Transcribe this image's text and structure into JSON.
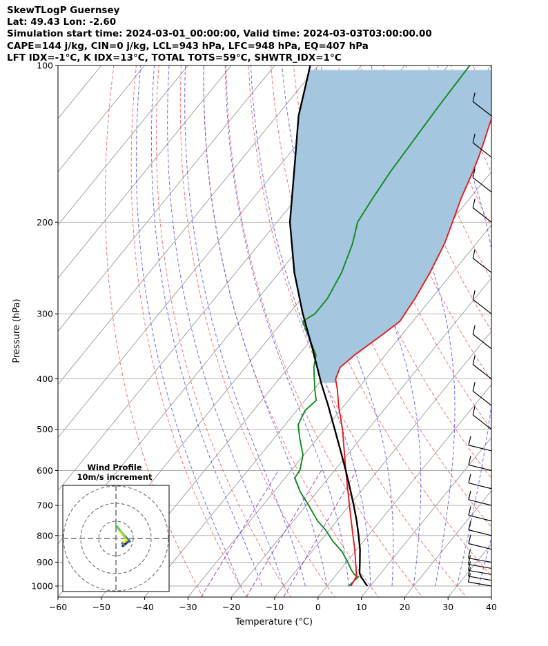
{
  "header": {
    "line1": "SkewTLogP Guernsey",
    "line2": "Lat: 49.43   Lon: -2.60",
    "line3": "Simulation start time: 2024-03-01_00:00:00, Valid time: 2024-03-03T03:00:00.00",
    "line4": "CAPE=144 j/kg, CIN=0 j/kg, LCL=943 hPa, LFC=948 hPa, EQ=407 hPa",
    "line5": "LFT IDX=-1°C, K IDX=13°C, TOTAL TOTS=59°C, SHWTR_IDX=1°C"
  },
  "colors": {
    "temperature": "#e8191b",
    "dewpoint": "#0e8a1a",
    "parcel": "#000000",
    "cape_fill": "#a4c6df",
    "dry_adiabat": "#ff6060",
    "moist_adiabat": "#5050ff",
    "mixing_ratio": "#9b30d0",
    "isotherm": "#999999"
  },
  "chart_data": {
    "type": "skewt",
    "xlabel": "Temperature (°C)",
    "ylabel": "Pressure (hPa)",
    "xlim": [
      -60,
      40
    ],
    "ylim": [
      1050,
      100
    ],
    "x_ticks": [
      -60,
      -50,
      -40,
      -30,
      -20,
      -10,
      0,
      10,
      20,
      30,
      40
    ],
    "x_tick_labels": [
      "−60",
      "−50",
      "−40",
      "−30",
      "−20",
      "−10",
      "0",
      "10",
      "20",
      "30",
      "40"
    ],
    "y_ticks": [
      1000,
      900,
      800,
      700,
      600,
      500,
      400,
      300,
      200,
      100
    ],
    "y_tick_labels": [
      "1000",
      "900",
      "800",
      "700",
      "600",
      "500",
      "400",
      "300",
      "200",
      "100"
    ],
    "grid": true,
    "series": [
      {
        "role": "temperature",
        "points": [
          [
            1000,
            5.5
          ],
          [
            960,
            5.0
          ],
          [
            950,
            4.6
          ],
          [
            900,
            2.1
          ],
          [
            850,
            -0.5
          ],
          [
            800,
            -3.5
          ],
          [
            700,
            -10.0
          ],
          [
            600,
            -17.4
          ],
          [
            500,
            -25.9
          ],
          [
            450,
            -31.3
          ],
          [
            420,
            -34.5
          ],
          [
            400,
            -37.0
          ],
          [
            380,
            -38.1
          ],
          [
            360,
            -37.1
          ],
          [
            330,
            -34.6
          ],
          [
            310,
            -33.0
          ],
          [
            280,
            -33.8
          ],
          [
            250,
            -35.2
          ],
          [
            220,
            -37.3
          ],
          [
            200,
            -39.5
          ],
          [
            180,
            -42.0
          ],
          [
            160,
            -44.3
          ],
          [
            150,
            -45.7
          ],
          [
            140,
            -47.4
          ],
          [
            130,
            -49.3
          ],
          [
            110,
            -53.2
          ],
          [
            100,
            -55.0
          ]
        ]
      },
      {
        "role": "dewpoint",
        "points": [
          [
            1000,
            5.0
          ],
          [
            960,
            5.5
          ],
          [
            950,
            4.1
          ],
          [
            930,
            2.5
          ],
          [
            900,
            0.3
          ],
          [
            860,
            -2.9
          ],
          [
            820,
            -7.1
          ],
          [
            780,
            -10.9
          ],
          [
            750,
            -14.4
          ],
          [
            700,
            -19.4
          ],
          [
            660,
            -23.8
          ],
          [
            620,
            -27.8
          ],
          [
            600,
            -28.0
          ],
          [
            560,
            -30.2
          ],
          [
            520,
            -34.1
          ],
          [
            490,
            -37.0
          ],
          [
            460,
            -38.1
          ],
          [
            440,
            -37.4
          ],
          [
            420,
            -39.7
          ],
          [
            380,
            -44.2
          ],
          [
            360,
            -46.0
          ],
          [
            340,
            -49.6
          ],
          [
            310,
            -55.4
          ],
          [
            300,
            -54.0
          ],
          [
            280,
            -54.0
          ],
          [
            250,
            -55.6
          ],
          [
            220,
            -58.5
          ],
          [
            200,
            -61.4
          ],
          [
            180,
            -62.4
          ],
          [
            160,
            -63.3
          ],
          [
            120,
            -64.5
          ],
          [
            100,
            -65.0
          ]
        ]
      },
      {
        "role": "parcel",
        "points": [
          [
            1000,
            9.3
          ],
          [
            960,
            6.1
          ],
          [
            943,
            5.0
          ],
          [
            900,
            3.1
          ],
          [
            850,
            0.7
          ],
          [
            800,
            -2.2
          ],
          [
            750,
            -5.4
          ],
          [
            700,
            -9.0
          ],
          [
            650,
            -13.0
          ],
          [
            600,
            -17.4
          ],
          [
            550,
            -22.3
          ],
          [
            500,
            -27.7
          ],
          [
            450,
            -33.7
          ],
          [
            407,
            -39.6
          ],
          [
            350,
            -48.0
          ],
          [
            300,
            -56.8
          ],
          [
            250,
            -66.5
          ],
          [
            200,
            -77.0
          ],
          [
            150,
            -88.0
          ],
          [
            125,
            -95.0
          ],
          [
            100,
            -101.8
          ]
        ]
      }
    ],
    "wind_barbs_right_edge": true,
    "inset": {
      "type": "hodograph",
      "title": "Wind Profile",
      "subtitle": "10m/s increment"
    }
  }
}
